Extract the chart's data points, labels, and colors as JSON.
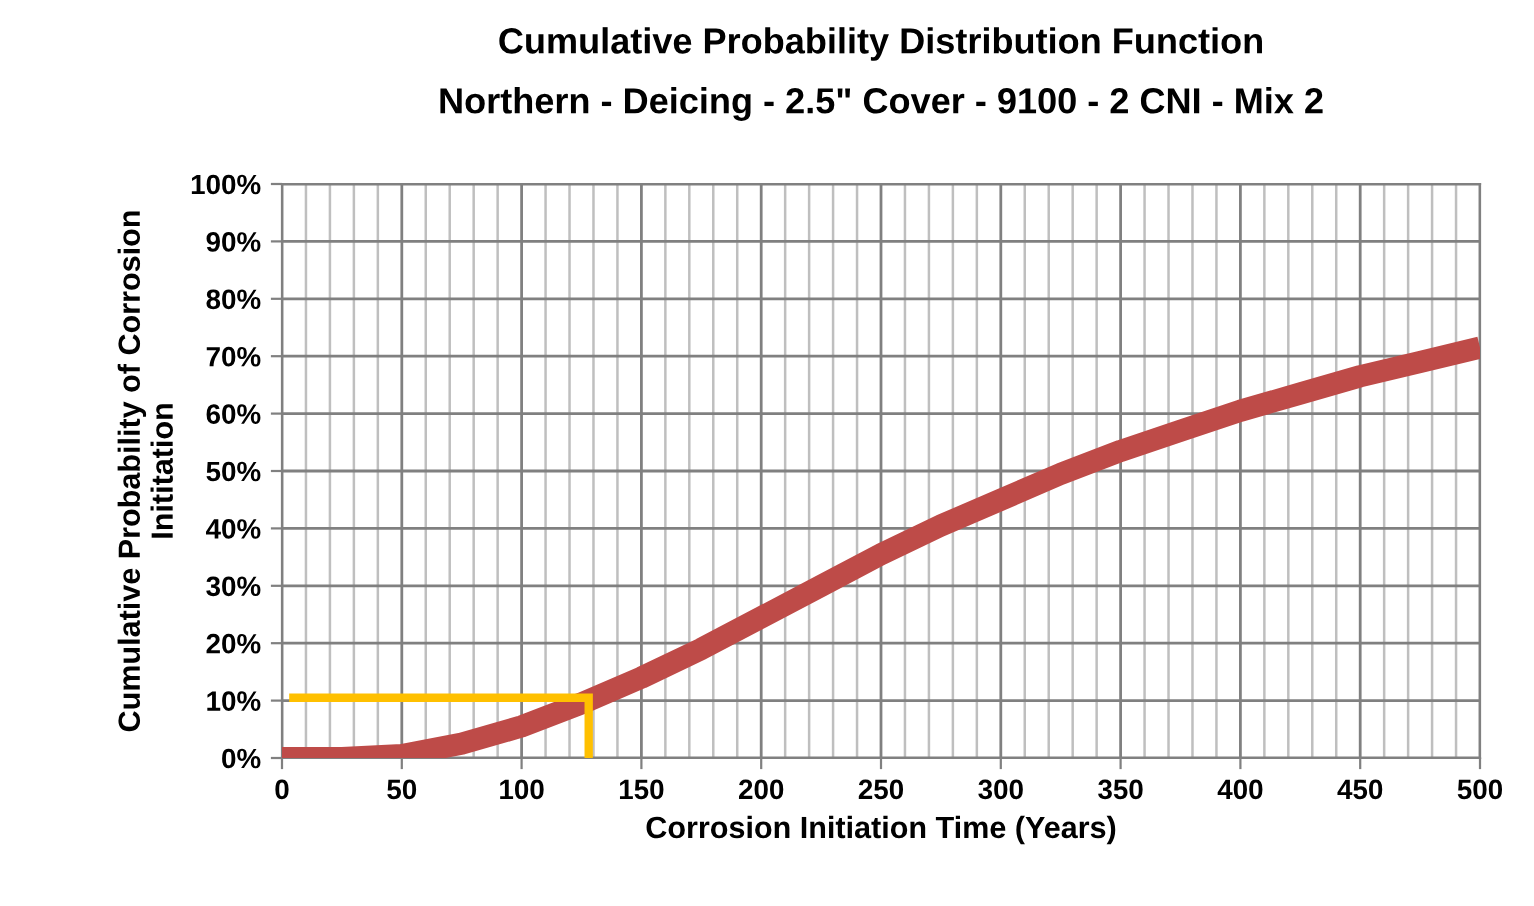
{
  "chart_data": {
    "type": "line",
    "title": "Cumulative Probability Distribution Function",
    "subtitle": "Northern - Deicing - 2.5\" Cover - 9100 - 2 CNI - Mix 2",
    "xlabel": "Corrosion Initiation Time (Years)",
    "ylabel": "Cumulative Probability of Corrosion\nInititation",
    "series": [
      {
        "color": "#be4b48",
        "x": [
          0,
          25,
          50,
          75,
          100,
          125,
          150,
          175,
          200,
          225,
          250,
          275,
          300,
          325,
          350,
          375,
          400,
          425,
          450,
          475,
          500
        ],
        "values": [
          0,
          0,
          0.5,
          2.5,
          5.5,
          9.5,
          14,
          19,
          24.5,
          30,
          35.5,
          40.5,
          45,
          49.5,
          53.5,
          57,
          60.5,
          63.5,
          66.5,
          69,
          71.5
        ]
      },
      {
        "color": "#ffc000",
        "x": [
          3,
          128,
          128
        ],
        "values": [
          10.5,
          10.5,
          0
        ]
      }
    ],
    "xlim": [
      0,
      500
    ],
    "xticks": [
      0,
      50,
      100,
      150,
      200,
      250,
      300,
      350,
      400,
      450,
      500
    ],
    "ylim": [
      0,
      100
    ],
    "yticks": [
      {
        "value": 0,
        "label": "0%"
      },
      {
        "value": 10,
        "label": "10%"
      },
      {
        "value": 20,
        "label": "20%"
      },
      {
        "value": 30,
        "label": "30%"
      },
      {
        "value": 40,
        "label": "40%"
      },
      {
        "value": 50,
        "label": "50%"
      },
      {
        "value": 60,
        "label": "60%"
      },
      {
        "value": 70,
        "label": "70%"
      },
      {
        "value": 80,
        "label": "80%"
      },
      {
        "value": 90,
        "label": "90%"
      },
      {
        "value": 100,
        "label": "100%"
      }
    ],
    "grid": true,
    "marker": "none",
    "line_style": "solid"
  }
}
